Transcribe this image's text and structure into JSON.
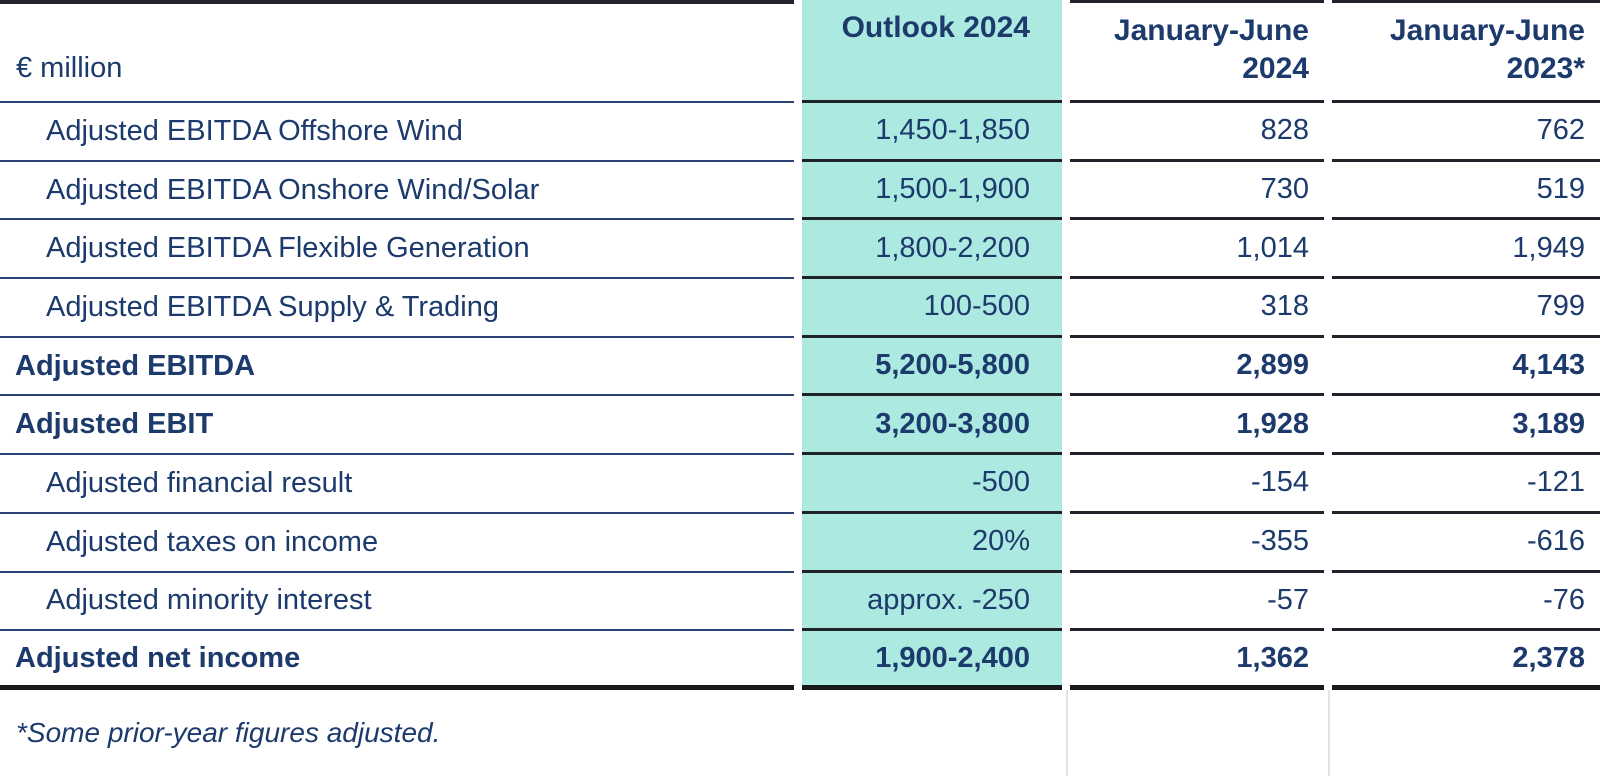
{
  "table": {
    "unit_label": "€ million",
    "columns": [
      "Outlook 2024",
      "January-June 2024",
      "January-June 2023*"
    ],
    "rows": [
      {
        "label": "Adjusted EBITDA Offshore Wind",
        "outlook": "1,450-1,850",
        "jan_june_2024": "828",
        "jan_june_2023": "762"
      },
      {
        "label": "Adjusted EBITDA Onshore Wind/Solar",
        "outlook": "1,500-1,900",
        "jan_june_2024": "730",
        "jan_june_2023": "519"
      },
      {
        "label": "Adjusted EBITDA Flexible Generation",
        "outlook": "1,800-2,200",
        "jan_june_2024": "1,014",
        "jan_june_2023": "1,949"
      },
      {
        "label": "Adjusted EBITDA Supply & Trading",
        "outlook": "100-500",
        "jan_june_2024": "318",
        "jan_june_2023": "799"
      },
      {
        "label": "Adjusted EBITDA",
        "outlook": "5,200-5,800",
        "jan_june_2024": "2,899",
        "jan_june_2023": "4,143"
      },
      {
        "label": "Adjusted EBIT",
        "outlook": "3,200-3,800",
        "jan_june_2024": "1,928",
        "jan_june_2023": "3,189"
      },
      {
        "label": "Adjusted financial result",
        "outlook": "-500",
        "jan_june_2024": "-154",
        "jan_june_2023": "-121"
      },
      {
        "label": "Adjusted taxes on income",
        "outlook": "20%",
        "jan_june_2024": "-355",
        "jan_june_2023": "-616"
      },
      {
        "label": "Adjusted minority interest",
        "outlook": "approx. -250",
        "jan_june_2024": "-57",
        "jan_june_2023": "-76"
      },
      {
        "label": "Adjusted net income",
        "outlook": "1,900-2,400",
        "jan_june_2024": "1,362",
        "jan_june_2023": "2,378"
      }
    ],
    "footnote": "*Some prior-year figures adjusted.",
    "colors": {
      "highlight_teal": "#ACE9E0",
      "text_navy": "#1C3A6C",
      "rule_navy": "#2B4076",
      "rule_dark": "#20242A"
    }
  }
}
